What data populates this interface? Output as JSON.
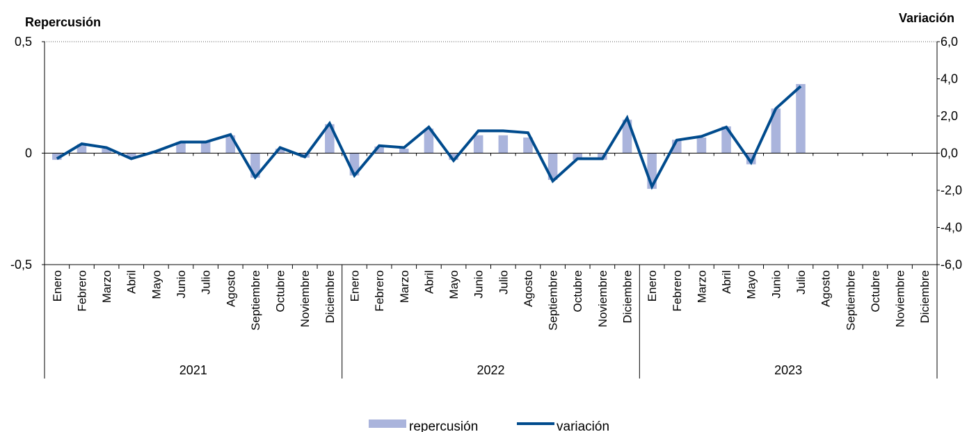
{
  "chart_data": {
    "type": "bar+line",
    "title": "",
    "y_left": {
      "label": "Repercusión",
      "ylim": [
        -0.5,
        0.5
      ],
      "ticks": [
        "0,5",
        "0",
        "-0,5"
      ],
      "tick_values": [
        0.5,
        0,
        -0.5
      ]
    },
    "y_right": {
      "label": "Variación",
      "ylim": [
        -6,
        6
      ],
      "ticks": [
        "6,0",
        "4,0",
        "2,0",
        "0,0",
        "-2,0",
        "-4,0",
        "-6,0"
      ],
      "tick_values": [
        6,
        4,
        2,
        0,
        -2,
        -4,
        -6
      ]
    },
    "years": [
      "2021",
      "2022",
      "2023"
    ],
    "months": [
      "Enero",
      "Febrero",
      "Marzo",
      "Abril",
      "Mayo",
      "Junio",
      "Julio",
      "Agosto",
      "Septiembre",
      "Octubre",
      "Noviembre",
      "Diciembre"
    ],
    "series": [
      {
        "name": "repercusión",
        "axis": "left",
        "kind": "bar",
        "color": "#aab4dc",
        "values": [
          -0.03,
          0.04,
          0.02,
          -0.02,
          0.01,
          0.05,
          0.05,
          0.08,
          -0.11,
          0.02,
          -0.02,
          0.13,
          -0.1,
          0.03,
          0.02,
          0.11,
          -0.03,
          0.08,
          0.08,
          0.07,
          -0.12,
          -0.03,
          -0.03,
          0.15,
          -0.16,
          0.06,
          0.07,
          0.12,
          -0.05,
          0.2,
          0.31,
          null,
          null,
          null,
          null,
          null
        ]
      },
      {
        "name": "variación",
        "axis": "right",
        "kind": "line",
        "color": "#004b8d",
        "values": [
          -0.3,
          0.5,
          0.3,
          -0.3,
          0.1,
          0.6,
          0.6,
          1.0,
          -1.3,
          0.3,
          -0.2,
          1.6,
          -1.2,
          0.4,
          0.3,
          1.4,
          -0.4,
          1.2,
          1.2,
          1.1,
          -1.5,
          -0.3,
          -0.3,
          1.9,
          -1.8,
          0.7,
          0.9,
          1.4,
          -0.5,
          2.4,
          3.6,
          null,
          null,
          null,
          null,
          null
        ]
      }
    ],
    "grid": {
      "top_line": "dotted"
    },
    "legend": {
      "placement": "bottom-center"
    }
  }
}
